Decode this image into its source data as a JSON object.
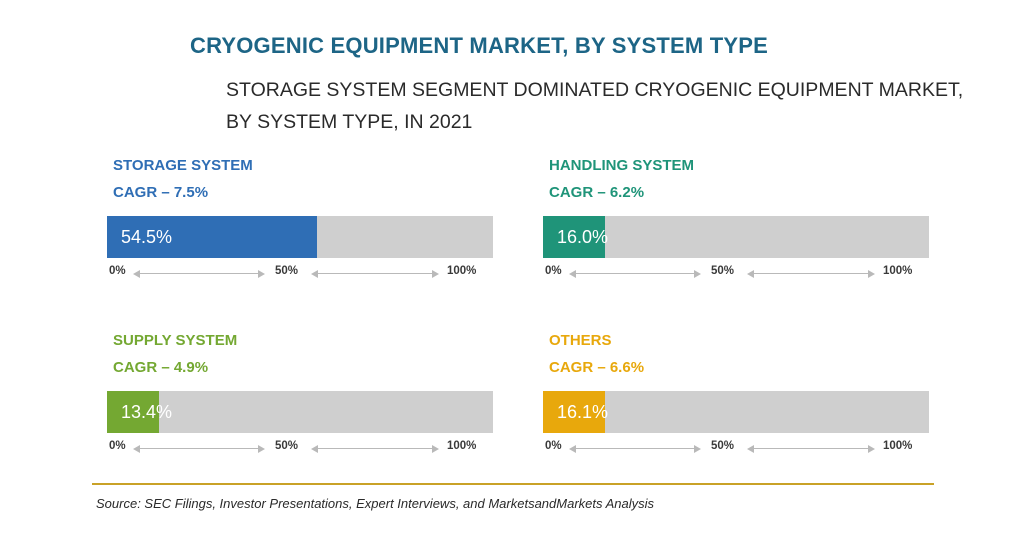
{
  "title": "CRYOGENIC EQUIPMENT MARKET, BY SYSTEM TYPE",
  "subtitle_line1": "STORAGE SYSTEM SEGMENT DOMINATED CRYOGENIC EQUIPMENT MARKET,",
  "subtitle_line2": "BY SYSTEM TYPE, IN 2021",
  "source": "Source: SEC Filings, Investor Presentations, Expert Interviews, and MarketsandMarkets Analysis",
  "chart_data": {
    "type": "bar",
    "orientation": "horizontal",
    "unit": "%",
    "xlim": [
      0,
      100
    ],
    "tick_labels": [
      "0%",
      "50%",
      "100%"
    ],
    "categories": [
      "STORAGE SYSTEM",
      "HANDLING SYSTEM",
      "SUPPLY SYSTEM",
      "OTHERS"
    ],
    "values": [
      54.5,
      16.0,
      13.4,
      16.1
    ],
    "segments": [
      {
        "name": "STORAGE SYSTEM",
        "cagr": "CAGR – 7.5%",
        "value": 54.5,
        "label": "54.5%",
        "color": "#2f6eb5"
      },
      {
        "name": "HANDLING SYSTEM",
        "cagr": "CAGR – 6.2%",
        "value": 16.0,
        "label": "16.0%",
        "color": "#1f9479"
      },
      {
        "name": "SUPPLY SYSTEM",
        "cagr": "CAGR – 4.9%",
        "value": 13.4,
        "label": "13.4%",
        "color": "#74a832"
      },
      {
        "name": "OTHERS",
        "cagr": "CAGR – 6.6%",
        "value": 16.1,
        "label": "16.1%",
        "color": "#e8a80c"
      }
    ]
  }
}
